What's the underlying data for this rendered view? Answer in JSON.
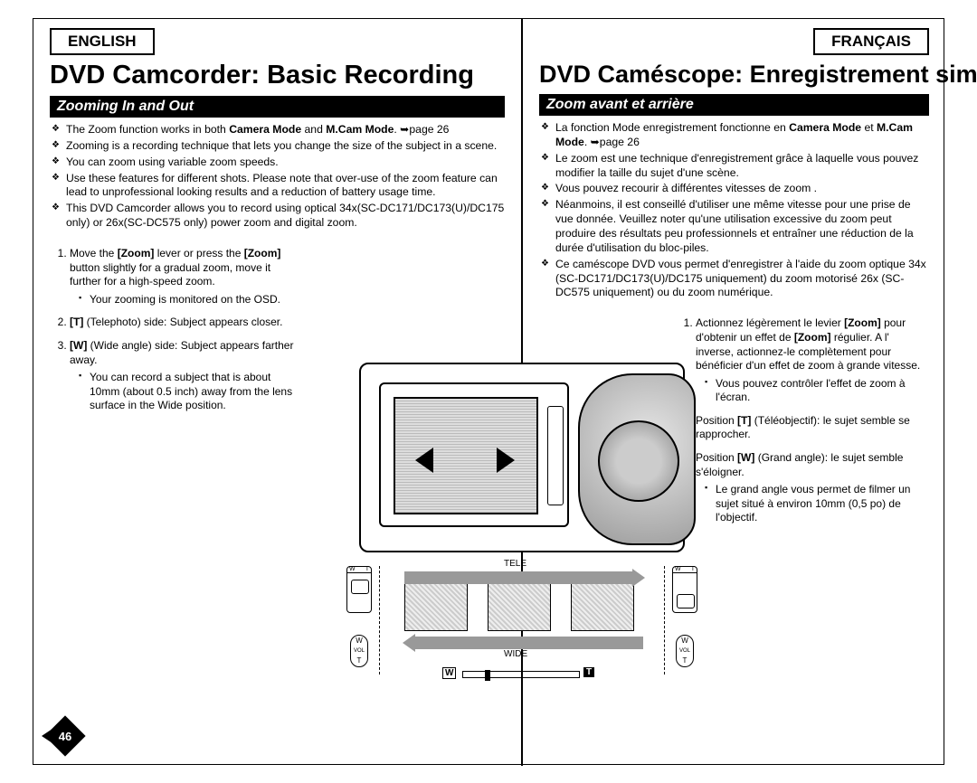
{
  "page_number": "46",
  "left": {
    "lang": "ENGLISH",
    "title": "DVD Camcorder: Basic Recording",
    "section": "Zooming In and Out",
    "bullets": [
      "The Zoom function works in both <b>Camera Mode</b> and <b>M.Cam Mode</b>. ➥page 26",
      "Zooming is a recording technique that lets you change the size of the subject in a scene.",
      "You can zoom using variable zoom speeds.",
      "Use these features for different shots. Please note that over-use of the zoom feature can lead to unprofessional looking results and a reduction of battery usage time.",
      "This DVD Camcorder allows you to record using optical 34x(SC-DC171/DC173(U)/DC175 only) or 26x(SC-DC575 only) power zoom and digital zoom."
    ],
    "steps": [
      {
        "text": "Move the <b>[Zoom]</b> lever or press the <b>[Zoom]</b> button slightly for a gradual zoom, move it further for a high-speed zoom.",
        "sub": [
          "Your zooming is monitored on the OSD."
        ]
      },
      {
        "text": "<b>[T]</b> (Telephoto) side: Subject appears closer."
      },
      {
        "text": "<b>[W]</b> (Wide angle) side: Subject appears farther away.",
        "sub": [
          "You can record a subject that is about 10mm (about 0.5 inch) away from the lens surface in the Wide position."
        ]
      }
    ]
  },
  "right": {
    "lang": "FRANÇAIS",
    "title": "DVD Caméscope: Enregistrement simple",
    "section": "Zoom avant et arrière",
    "bullets": [
      "La fonction Mode enregistrement fonctionne en <b>Camera Mode</b> et <b>M.Cam Mode</b>. ➥page 26",
      "Le zoom est une technique d'enregistrement grâce à laquelle vous pouvez modifier la taille du sujet d'une scène.",
      "Vous pouvez recourir à différentes vitesses de zoom .",
      "Néanmoins, il est conseillé d'utiliser une même vitesse pour une prise de vue donnée. Veuillez noter qu'une utilisation excessive du zoom peut produire des résultats peu professionnels et entraîner une réduction de la durée d'utilisation du bloc-piles.",
      "Ce caméscope DVD vous permet d'enregistrer à l'aide du zoom optique 34x (SC-DC171/DC173(U)/DC175 uniquement) du zoom motorisé 26x (SC-DC575 uniquement) ou du zoom numérique."
    ],
    "steps": [
      {
        "text": "Actionnez légèrement le levier <b>[Zoom]</b> pour d'obtenir un effet de <b>[Zoom]</b> régulier. A l' inverse, actionnez-le complètement pour bénéficier d'un effet de zoom à grande vitesse.",
        "sub": [
          "Vous pouvez contrôler l'effet de zoom à l'écran."
        ]
      },
      {
        "text": "Position <b>[T]</b> (Téléobjectif): le sujet semble se rapprocher."
      },
      {
        "text": "Position <b>[W]</b> (Grand angle): le sujet semble s'éloigner.",
        "sub": [
          "Le grand angle vous permet de filmer un sujet situé à environ 10mm (0,5 po) de l'objectif."
        ]
      }
    ]
  },
  "diagram": {
    "tele": "TELE",
    "wide": "WIDE",
    "w": "W",
    "t": "T",
    "vol": "VOL"
  }
}
